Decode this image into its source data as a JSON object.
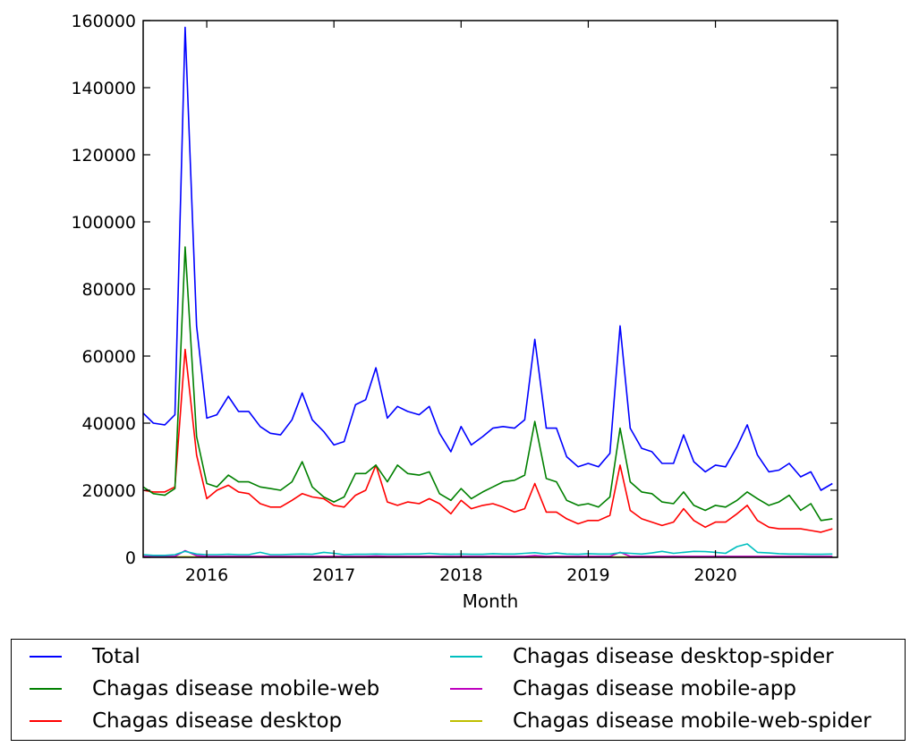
{
  "chart_data": {
    "type": "line",
    "title": "",
    "xlabel": "Month",
    "ylabel": "",
    "ylim": [
      0,
      160000
    ],
    "xlim": [
      2015.5,
      2020.96
    ],
    "yticks": [
      "0",
      "20000",
      "40000",
      "60000",
      "80000",
      "100000",
      "120000",
      "140000",
      "160000"
    ],
    "xticks": [
      "2016",
      "2017",
      "2018",
      "2019",
      "2020"
    ],
    "x": [
      2015.5,
      2015.58,
      2015.67,
      2015.75,
      2015.83,
      2015.92,
      2016.0,
      2016.08,
      2016.17,
      2016.25,
      2016.33,
      2016.42,
      2016.5,
      2016.58,
      2016.67,
      2016.75,
      2016.83,
      2016.92,
      2017.0,
      2017.08,
      2017.17,
      2017.25,
      2017.33,
      2017.42,
      2017.5,
      2017.58,
      2017.67,
      2017.75,
      2017.83,
      2017.92,
      2018.0,
      2018.08,
      2018.17,
      2018.25,
      2018.33,
      2018.42,
      2018.5,
      2018.58,
      2018.67,
      2018.75,
      2018.83,
      2018.92,
      2019.0,
      2019.08,
      2019.17,
      2019.25,
      2019.33,
      2019.42,
      2019.5,
      2019.58,
      2019.67,
      2019.75,
      2019.83,
      2019.92,
      2020.0,
      2020.08,
      2020.17,
      2020.25,
      2020.33,
      2020.42,
      2020.5,
      2020.58,
      2020.67,
      2020.75,
      2020.83,
      2020.92
    ],
    "series": [
      {
        "name": "Total",
        "color": "#0000ff",
        "values": [
          43000,
          40000,
          39500,
          42500,
          158000,
          69000,
          41500,
          42500,
          48000,
          43500,
          43500,
          39000,
          37000,
          36500,
          41000,
          49000,
          41000,
          37500,
          33500,
          34500,
          45500,
          47000,
          56500,
          41500,
          45000,
          43500,
          42500,
          45000,
          37000,
          31500,
          39000,
          33500,
          36000,
          38500,
          39000,
          38500,
          41000,
          65000,
          38500,
          38500,
          30000,
          27000,
          28000,
          27000,
          31000,
          69000,
          38500,
          32500,
          31500,
          28000,
          28000,
          36500,
          28500,
          25500,
          27500,
          27000,
          33000,
          39500,
          30500,
          25500,
          26000,
          28000,
          24000,
          25500,
          20000,
          22000
        ]
      },
      {
        "name": "Chagas disease mobile-web",
        "color": "#008000",
        "values": [
          21000,
          19000,
          18500,
          20500,
          92500,
          36000,
          22000,
          21000,
          24500,
          22500,
          22500,
          21000,
          20500,
          20000,
          22500,
          28500,
          21000,
          18000,
          16500,
          18000,
          25000,
          25000,
          27500,
          22500,
          27500,
          25000,
          24500,
          25500,
          19000,
          17000,
          20500,
          17500,
          19500,
          21000,
          22500,
          23000,
          24500,
          40500,
          23500,
          22500,
          17000,
          15500,
          16000,
          15000,
          18000,
          38500,
          22500,
          19500,
          19000,
          16500,
          16000,
          19500,
          15500,
          14000,
          15500,
          15000,
          17000,
          19500,
          17500,
          15500,
          16500,
          18500,
          14000,
          16000,
          11000,
          11500
        ]
      },
      {
        "name": "Chagas disease desktop",
        "color": "#ff0000",
        "values": [
          20000,
          19500,
          19500,
          21000,
          62000,
          30500,
          17500,
          20000,
          21500,
          19500,
          19000,
          16000,
          15000,
          15000,
          17000,
          19000,
          18000,
          17500,
          15500,
          15000,
          18500,
          20000,
          27500,
          16500,
          15500,
          16500,
          16000,
          17500,
          16000,
          13000,
          17000,
          14500,
          15500,
          16000,
          15000,
          13500,
          14500,
          22000,
          13500,
          13500,
          11500,
          10000,
          11000,
          11000,
          12500,
          27500,
          14000,
          11500,
          10500,
          9500,
          10500,
          14500,
          11000,
          9000,
          10500,
          10500,
          13000,
          15500,
          11000,
          9000,
          8500,
          8500,
          8500,
          8000,
          7500,
          8500
        ]
      },
      {
        "name": "Chagas disease desktop-spider",
        "color": "#00bfbf",
        "values": [
          800,
          600,
          600,
          800,
          1800,
          1000,
          800,
          800,
          900,
          800,
          800,
          1500,
          800,
          800,
          900,
          1000,
          900,
          1500,
          1200,
          800,
          900,
          900,
          1000,
          900,
          900,
          1000,
          1000,
          1200,
          1000,
          900,
          1000,
          900,
          900,
          1100,
          1000,
          1000,
          1200,
          1400,
          1000,
          1300,
          1000,
          900,
          1100,
          1000,
          1000,
          1400,
          1200,
          1000,
          1300,
          1800,
          1200,
          1500,
          1800,
          1700,
          1500,
          1200,
          3200,
          4000,
          1500,
          1300,
          1100,
          1000,
          1000,
          900,
          900,
          1000
        ]
      },
      {
        "name": "Chagas disease mobile-app",
        "color": "#bf00bf",
        "values": [
          300,
          300,
          300,
          300,
          2000,
          500,
          300,
          300,
          300,
          300,
          300,
          300,
          300,
          300,
          300,
          300,
          300,
          300,
          300,
          300,
          300,
          300,
          400,
          300,
          300,
          300,
          300,
          300,
          300,
          300,
          300,
          300,
          300,
          300,
          300,
          300,
          300,
          500,
          300,
          300,
          300,
          300,
          300,
          300,
          300,
          1500,
          300,
          300,
          300,
          300,
          300,
          300,
          300,
          300,
          300,
          300,
          300,
          300,
          300,
          300,
          300,
          300,
          300,
          300,
          300,
          300
        ]
      },
      {
        "name": "Chagas disease mobile-web-spider",
        "color": "#bfbf00",
        "values": [
          100,
          100,
          100,
          100,
          200,
          100,
          100,
          100,
          100,
          100,
          100,
          100,
          100,
          100,
          100,
          100,
          100,
          100,
          100,
          100,
          100,
          100,
          100,
          100,
          100,
          100,
          100,
          100,
          100,
          100,
          100,
          100,
          100,
          100,
          100,
          100,
          100,
          100,
          100,
          100,
          100,
          100,
          100,
          100,
          100,
          100,
          100,
          100,
          100,
          100,
          100,
          100,
          100,
          100,
          100,
          100,
          100,
          100,
          100,
          100,
          100,
          100,
          100,
          100,
          100,
          100
        ]
      }
    ]
  },
  "legend": {
    "items": [
      {
        "label": "Total",
        "color": "#0000ff"
      },
      {
        "label": "Chagas disease mobile-web",
        "color": "#008000"
      },
      {
        "label": "Chagas disease desktop",
        "color": "#ff0000"
      },
      {
        "label": "Chagas disease desktop-spider",
        "color": "#00bfbf"
      },
      {
        "label": "Chagas disease mobile-app",
        "color": "#bf00bf"
      },
      {
        "label": "Chagas disease mobile-web-spider",
        "color": "#bfbf00"
      }
    ]
  }
}
